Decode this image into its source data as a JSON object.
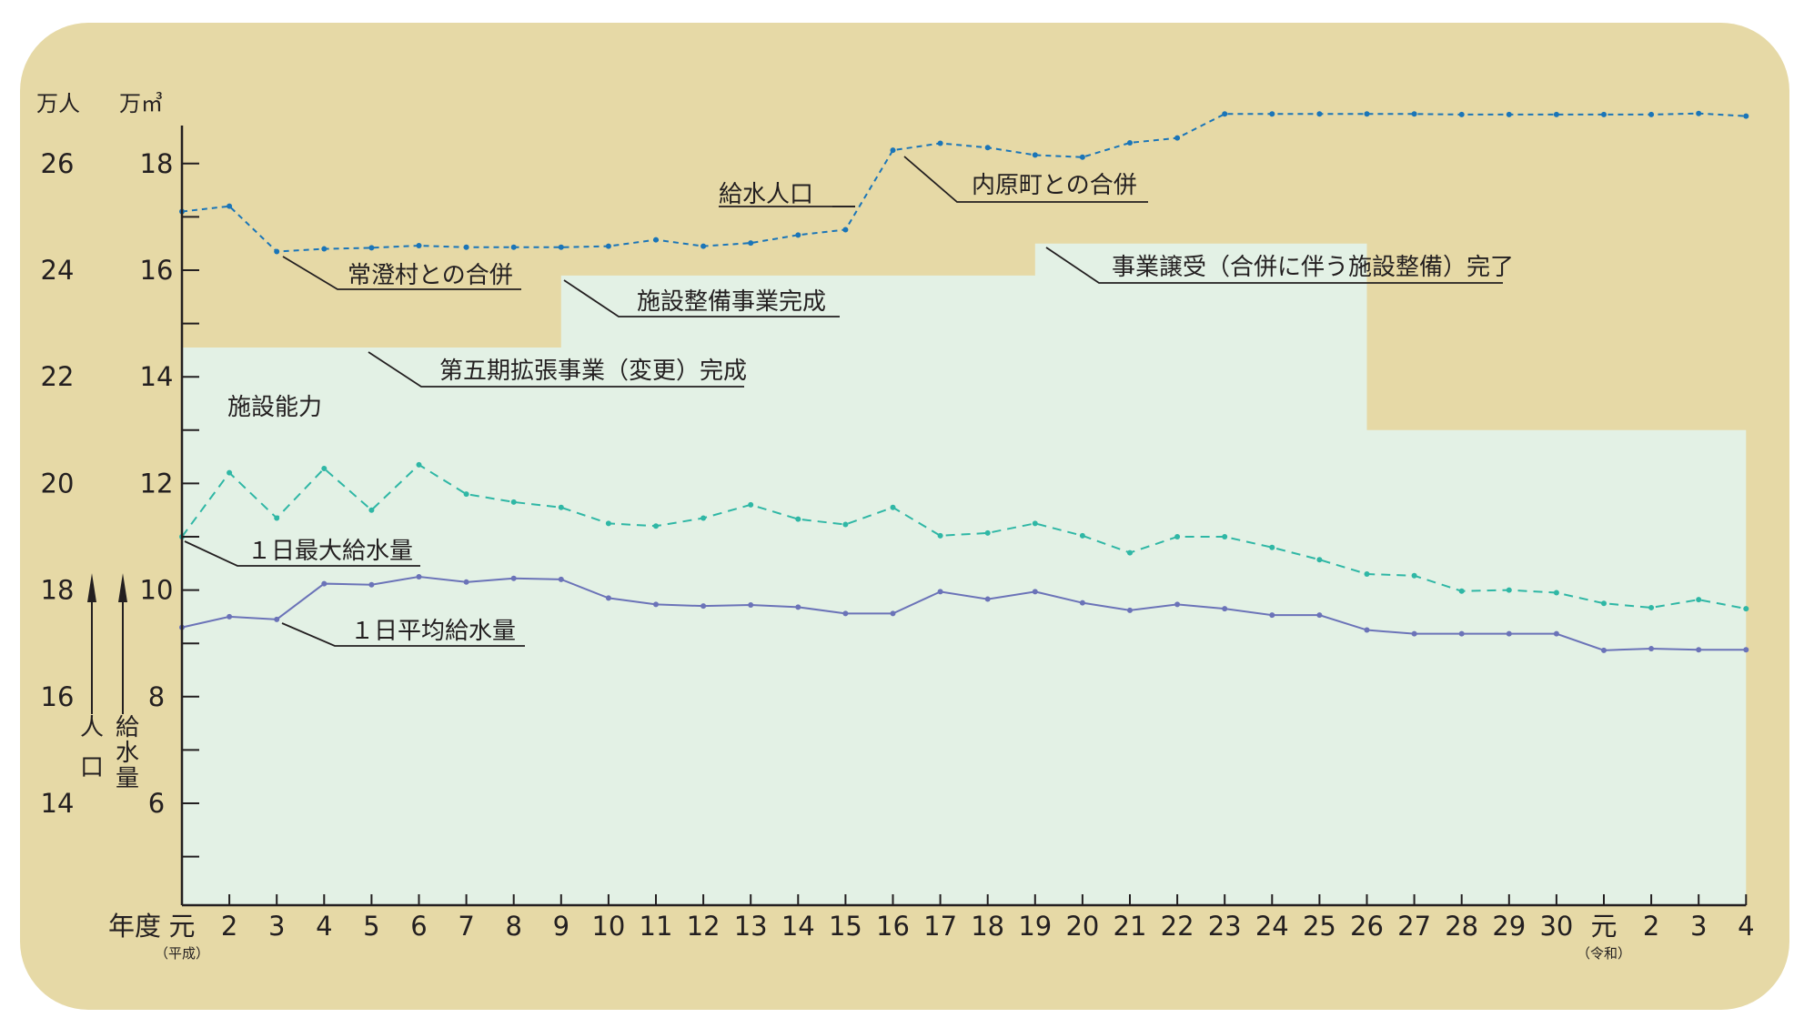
{
  "chart_data": {
    "type": "line",
    "title": "",
    "x_prefix_label": "年度",
    "x": [
      "元",
      "2",
      "3",
      "4",
      "5",
      "6",
      "7",
      "8",
      "9",
      "10",
      "11",
      "12",
      "13",
      "14",
      "15",
      "16",
      "17",
      "18",
      "19",
      "20",
      "21",
      "22",
      "23",
      "24",
      "25",
      "26",
      "27",
      "28",
      "29",
      "30",
      "元",
      "2",
      "3",
      "4"
    ],
    "era_labels": [
      {
        "text": "（平成）",
        "under": 0
      },
      {
        "text": "（令和）",
        "under": 30
      }
    ],
    "left_axis": {
      "unit": "万人",
      "ticks": [
        14,
        16,
        18,
        20,
        22,
        24,
        26
      ],
      "label": [
        "人",
        "口"
      ]
    },
    "right_axis": {
      "unit": "万㎥",
      "ticks": [
        6,
        8,
        10,
        12,
        14,
        16,
        18
      ],
      "range": [
        4.1,
        18.7
      ],
      "label": [
        "給",
        "水",
        "量"
      ]
    },
    "series": [
      {
        "name": "給水人口",
        "axis": "left",
        "style": "dotted-marker",
        "color": "#1a75b8",
        "values": [
          25.1,
          25.2,
          24.35,
          24.4,
          24.42,
          24.46,
          24.43,
          24.43,
          24.43,
          24.45,
          24.57,
          24.45,
          24.51,
          24.66,
          24.76,
          26.25,
          26.38,
          26.3,
          26.16,
          26.12,
          26.39,
          26.48,
          26.93,
          26.93,
          26.93,
          26.93,
          26.93,
          26.92,
          26.92,
          26.92,
          26.92,
          26.92,
          26.94,
          26.89
        ]
      },
      {
        "name": "１日最大給水量",
        "axis": "right",
        "style": "dashed-marker",
        "color": "#2fb7a5",
        "values": [
          11.0,
          12.2,
          11.35,
          12.28,
          11.5,
          12.35,
          11.8,
          11.65,
          11.55,
          11.25,
          11.2,
          11.35,
          11.6,
          11.33,
          11.23,
          11.55,
          11.02,
          11.07,
          11.25,
          11.02,
          10.7,
          11.0,
          11.0,
          10.8,
          10.57,
          10.3,
          10.27,
          9.98,
          10.0,
          9.95,
          9.75,
          9.67,
          9.82,
          9.65
        ]
      },
      {
        "name": "１日平均給水量",
        "axis": "right",
        "style": "solid-marker",
        "color": "#6b73b8",
        "values": [
          9.3,
          9.5,
          9.45,
          10.12,
          10.1,
          10.25,
          10.15,
          10.22,
          10.2,
          9.85,
          9.73,
          9.7,
          9.72,
          9.68,
          9.56,
          9.56,
          9.97,
          9.83,
          9.97,
          9.76,
          9.62,
          9.73,
          9.65,
          9.53,
          9.53,
          9.25,
          9.18,
          9.18,
          9.18,
          9.18,
          8.87,
          8.9,
          8.88,
          8.88
        ]
      }
    ],
    "capacity_label": "施設能力",
    "capacity_steps": [
      {
        "from": -0.5,
        "to": 8,
        "value": 14.55
      },
      {
        "from": 8,
        "to": 18,
        "value": 15.9
      },
      {
        "from": 18,
        "to": 25,
        "value": 16.5
      },
      {
        "from": 25,
        "to": 33,
        "value": 13.0
      }
    ],
    "annotations": [
      {
        "text": "給水人口"
      },
      {
        "text": "内原町との合併"
      },
      {
        "text": "常澄村との合併"
      },
      {
        "text": "施設整備事業完成"
      },
      {
        "text": "事業譲受（合併に伴う施設整備）完了"
      },
      {
        "text": "第五期拡張事業（変更）完成"
      },
      {
        "text": "１日最大給水量"
      },
      {
        "text": "１日平均給水量"
      }
    ],
    "colors": {
      "background": "#e6d9a6",
      "capacity_fill": "#e3f1e5",
      "axis": "#231f20"
    },
    "grid": false,
    "legend": "none"
  }
}
